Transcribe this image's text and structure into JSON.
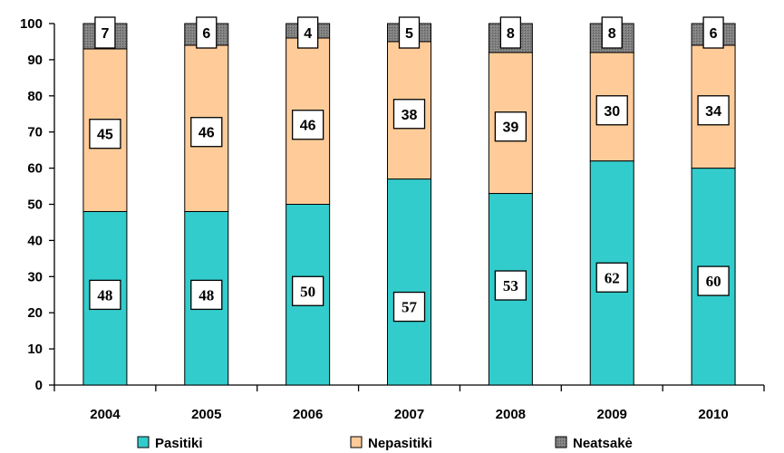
{
  "chart_data": {
    "type": "bar",
    "stacked": true,
    "categories": [
      "2004",
      "2005",
      "2006",
      "2007",
      "2008",
      "2009",
      "2010"
    ],
    "series": [
      {
        "name": "Pasitiki",
        "color": "#33CCCC",
        "values": [
          48,
          48,
          50,
          57,
          53,
          62,
          60
        ]
      },
      {
        "name": "Nepasitiki",
        "color": "#FFCC99",
        "values": [
          45,
          46,
          46,
          38,
          39,
          30,
          34
        ]
      },
      {
        "name": "Neatsakė",
        "color": "#808080",
        "values": [
          7,
          6,
          4,
          5,
          8,
          8,
          6
        ]
      }
    ],
    "ylim": [
      0,
      100
    ],
    "yticks": [
      0,
      10,
      20,
      30,
      40,
      50,
      60,
      70,
      80,
      90,
      100
    ],
    "grid": false,
    "legend_position": "bottom"
  }
}
